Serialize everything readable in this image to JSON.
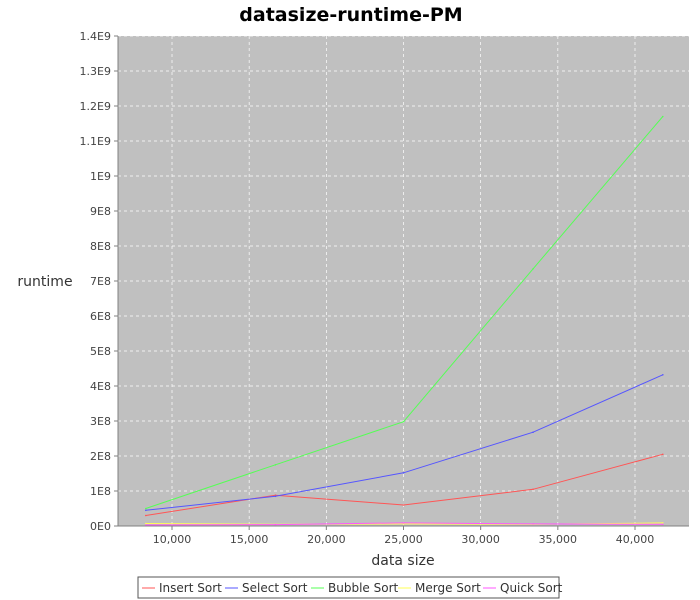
{
  "chart_data": {
    "type": "line",
    "title": "datasize-runtime-PM",
    "xlabel": "data size",
    "ylabel": "runtime",
    "xlim": [
      6500,
      43500
    ],
    "ylim": [
      0,
      1400000000
    ],
    "x_ticks": [
      10000,
      15000,
      20000,
      25000,
      30000,
      35000,
      40000
    ],
    "x_tick_labels": [
      "10,000",
      "15,000",
      "20,000",
      "25,000",
      "30,000",
      "35,000",
      "40,000"
    ],
    "y_ticks": [
      0,
      100000000,
      200000000,
      300000000,
      400000000,
      500000000,
      600000000,
      700000000,
      800000000,
      900000000,
      1000000000,
      1100000000,
      1200000000,
      1300000000,
      1400000000
    ],
    "y_tick_labels": [
      "0E0",
      "1E8",
      "2E8",
      "3E8",
      "4E8",
      "5E8",
      "6E8",
      "7E8",
      "8E8",
      "9E8",
      "1E9",
      "1.1E9",
      "1.2E9",
      "1.3E9",
      "1.4E9"
    ],
    "grid": true,
    "legend_position": "bottom",
    "plot_background": "#c0c0c0",
    "series": [
      {
        "name": "Insert Sort",
        "color": "#ff5555",
        "x": [
          8300,
          16700,
          25000,
          33400,
          41800
        ],
        "y": [
          30000000,
          88000000,
          60000000,
          105000000,
          205000000
        ]
      },
      {
        "name": "Select Sort",
        "color": "#5555ff",
        "x": [
          8300,
          16700,
          25000,
          33400,
          41800
        ],
        "y": [
          45000000,
          85000000,
          152000000,
          268000000,
          432000000
        ]
      },
      {
        "name": "Bubble Sort",
        "color": "#55ff55",
        "x": [
          8300,
          16700,
          25000,
          33400,
          41800
        ],
        "y": [
          50000000,
          175000000,
          298000000,
          735000000,
          1170000000
        ]
      },
      {
        "name": "Merge Sort",
        "color": "#ffff55",
        "x": [
          8300,
          16700,
          25000,
          33400,
          41800
        ],
        "y": [
          7000000,
          5000000,
          6000000,
          5000000,
          9000000
        ]
      },
      {
        "name": "Quick Sort",
        "color": "#ff55ff",
        "x": [
          8300,
          16700,
          25000,
          33400,
          41800
        ],
        "y": [
          3000000,
          4000000,
          9000000,
          6000000,
          5000000
        ]
      }
    ]
  }
}
